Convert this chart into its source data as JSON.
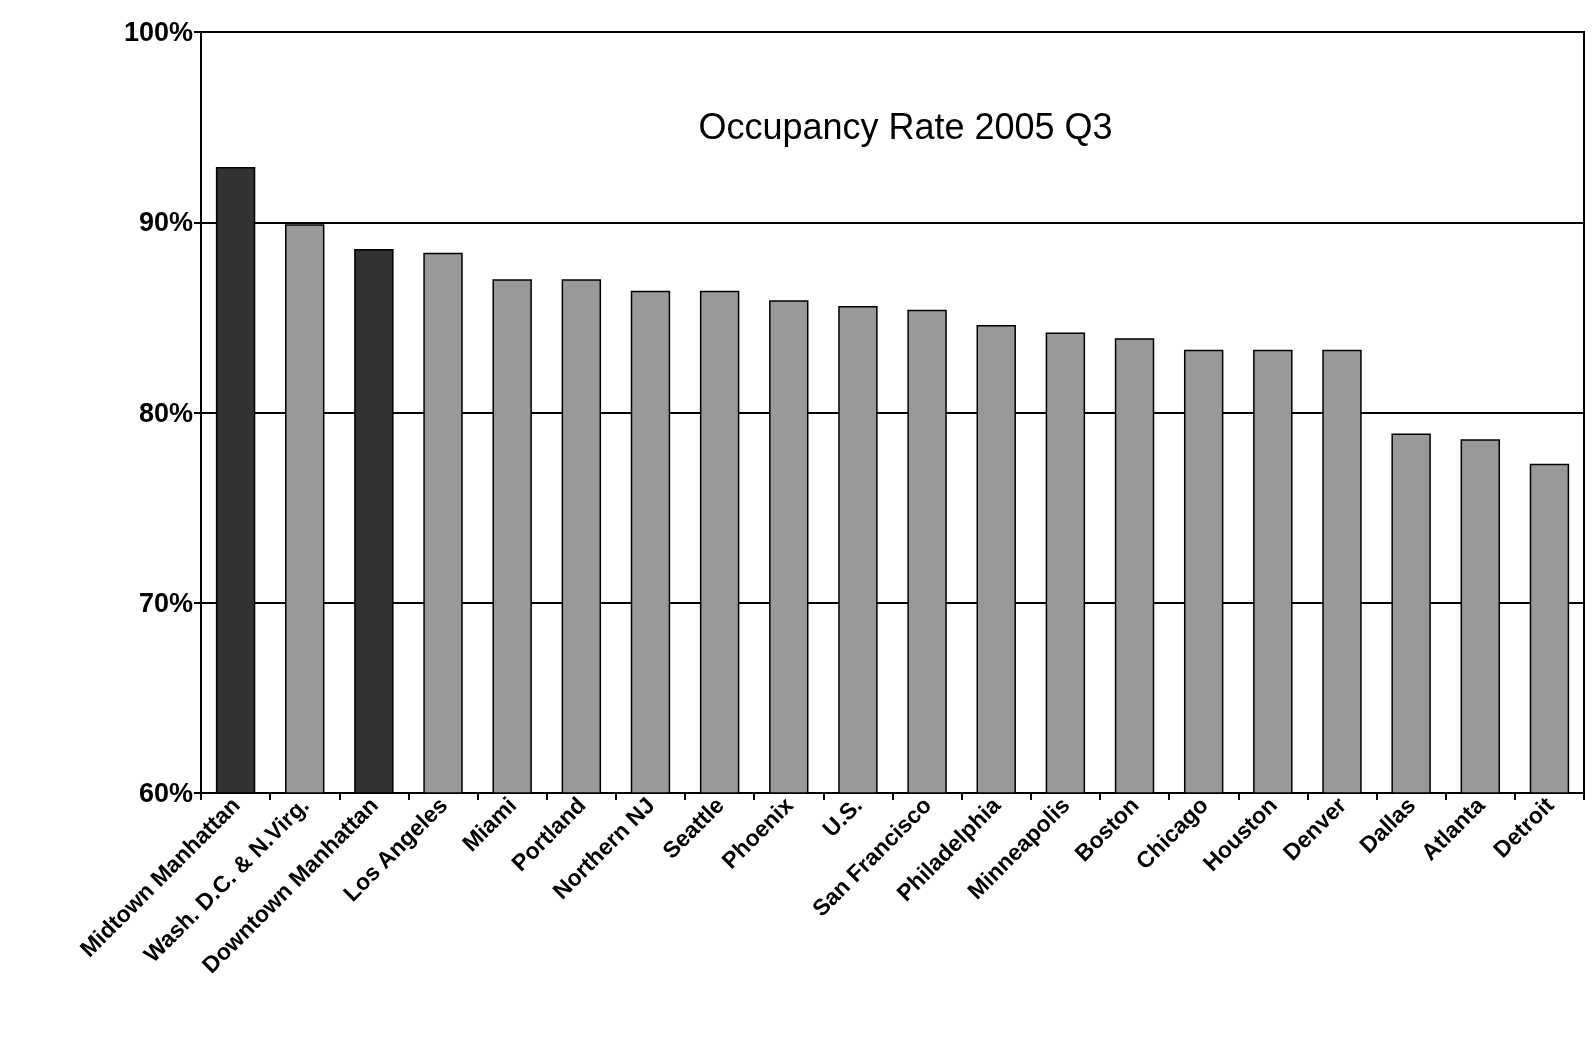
{
  "chart_data": {
    "type": "bar",
    "title": "Occupancy Rate 2005 Q3",
    "categories": [
      "Midtown Manhattan",
      "Wash. D.C. & N.Virg.",
      "Downtown Manhattan",
      "Los Angeles",
      "Miami",
      "Portland",
      "Northern NJ",
      "Seattle",
      "Phoenix",
      "U.S.",
      "San Francisco",
      "Philadelphia",
      "Minneapolis",
      "Boston",
      "Chicago",
      "Houston",
      "Denver",
      "Dallas",
      "Atlanta",
      "Detroit"
    ],
    "values": [
      92.9,
      89.9,
      88.6,
      88.4,
      87.0,
      87.0,
      86.4,
      86.4,
      85.9,
      85.6,
      85.4,
      84.6,
      84.2,
      83.9,
      83.3,
      83.3,
      83.3,
      78.9,
      78.6,
      77.3
    ],
    "colors": [
      "#333333",
      "#999999",
      "#333333",
      "#999999",
      "#999999",
      "#999999",
      "#999999",
      "#999999",
      "#999999",
      "#999999",
      "#999999",
      "#999999",
      "#999999",
      "#999999",
      "#999999",
      "#999999",
      "#999999",
      "#999999",
      "#999999",
      "#999999"
    ],
    "ylim": [
      60,
      100
    ],
    "yticks": [
      {
        "value": 60,
        "label": "60%"
      },
      {
        "value": 70,
        "label": "70%"
      },
      {
        "value": 80,
        "label": "80%"
      },
      {
        "value": 90,
        "label": "90%"
      },
      {
        "value": 100,
        "label": "100%"
      }
    ],
    "grid": "y"
  }
}
